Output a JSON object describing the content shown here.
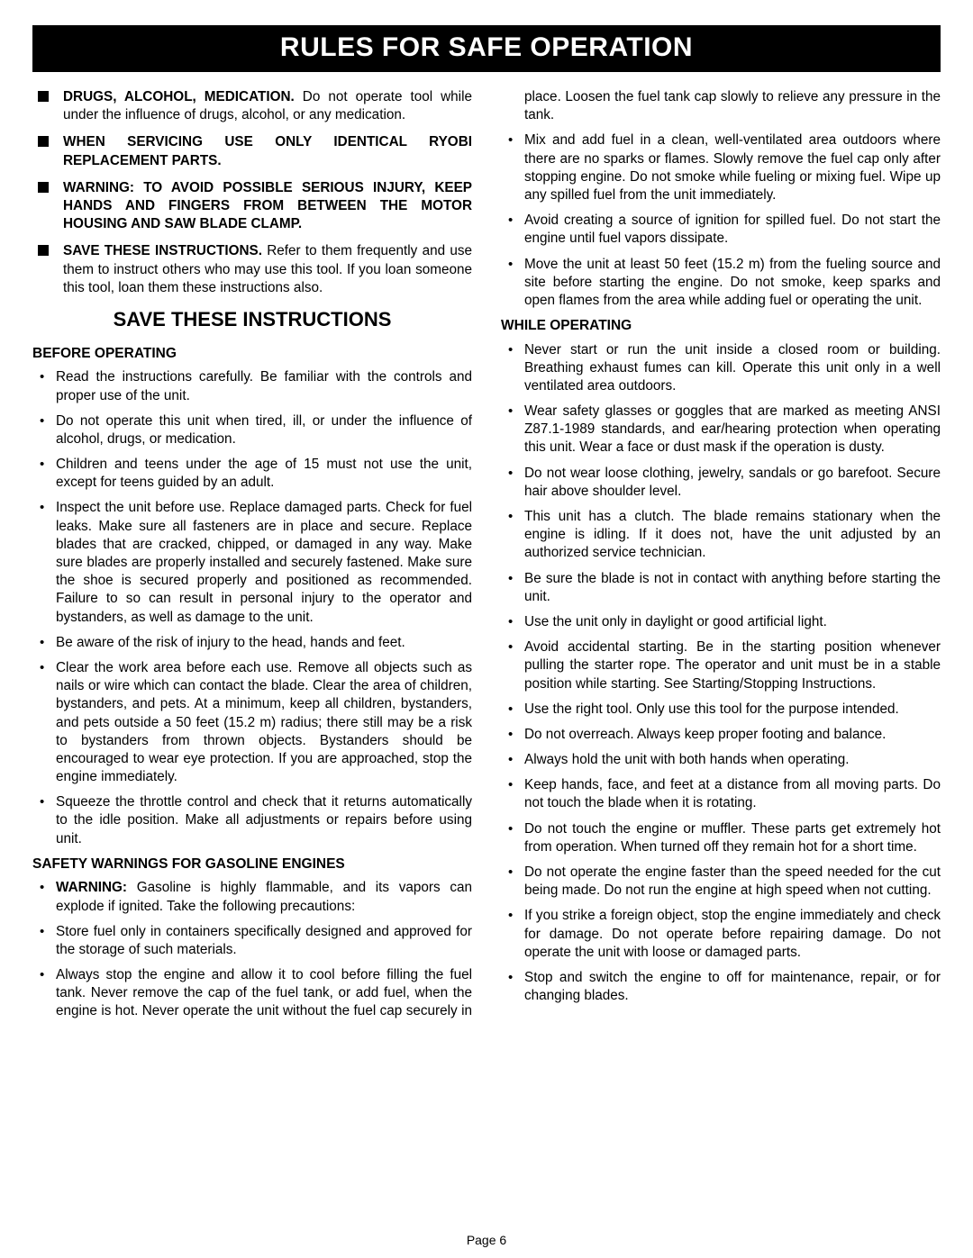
{
  "banner": "RULES FOR SAFE OPERATION",
  "squares": [
    {
      "bold": "DRUGS, ALCOHOL, MEDICATION.",
      "rest": " Do not operate tool while under the influence of drugs, alcohol, or any medication."
    },
    {
      "bold": "WHEN SERVICING USE ONLY IDENTICAL RYOBI REPLACEMENT PARTS.",
      "rest": ""
    },
    {
      "bold": "WARNING: TO AVOID POSSIBLE SERIOUS INJURY, KEEP HANDS AND FINGERS FROM BETWEEN THE MOTOR HOUSING AND SAW BLADE CLAMP.",
      "rest": ""
    },
    {
      "bold": "SAVE THESE INSTRUCTIONS.",
      "rest": " Refer to them frequently and use them to instruct others who may use this tool. If you loan someone this tool, loan them these instructions also."
    }
  ],
  "subhead": "SAVE THESE INSTRUCTIONS",
  "sec_before": "BEFORE OPERATING",
  "before_items": [
    {
      "text": "Read the instructions carefully. Be familiar with the controls and proper use of the unit."
    },
    {
      "text": "Do not operate this unit when tired, ill, or under the influence of alcohol, drugs, or medication."
    },
    {
      "text": "Children and teens under the age of 15 must not use the unit, except for teens guided by an adult."
    },
    {
      "text": "Inspect the unit before use. Replace damaged parts. Check for fuel leaks. Make sure all fasteners are in place and secure. Replace blades that are cracked, chipped, or damaged in any way. Make sure blades are properly installed and securely fastened. Make sure the shoe is secured properly and positioned as recommended. Failure to so can result in personal injury to the operator and bystanders, as well as damage to the unit."
    },
    {
      "text": "Be aware of the risk of injury to the head, hands and feet."
    },
    {
      "text": "Clear the work area before each use. Remove all objects such as nails or wire which can contact the blade. Clear the area of children, bystanders, and pets. At a minimum, keep all children, bystanders, and pets outside a 50 feet (15.2 m) radius; there still may be a risk to bystanders from thrown objects. Bystanders should be encouraged to wear eye protection. If you are approached, stop the engine immediately."
    },
    {
      "text": "Squeeze the throttle control and check that it returns automatically to the idle position. Make all adjustments or repairs before using unit."
    }
  ],
  "sec_gas": "SAFETY WARNINGS FOR GASOLINE ENGINES",
  "gas_items": [
    {
      "bold": "WARNING:",
      "rest": " Gasoline is highly flammable, and its vapors can explode if ignited. Take the following precautions:"
    },
    {
      "text": "Store fuel only in containers specifically designed and approved for the storage of such materials."
    },
    {
      "text": "Always stop the engine and allow it to cool before filling the fuel tank. Never remove the cap of the fuel tank, or add fuel, when the engine is hot. Never operate the unit without the fuel cap securely in place. Loosen the fuel tank cap slowly to relieve any pressure in the tank."
    },
    {
      "text": "Mix and add fuel in a clean, well-ventilated area outdoors where there are no sparks or flames. Slowly remove the fuel cap only after stopping engine. Do not smoke while fueling or mixing fuel. Wipe up any spilled fuel from the unit immediately."
    },
    {
      "text": "Avoid creating a source of ignition for spilled fuel. Do not start the engine until fuel vapors dissipate."
    },
    {
      "text": "Move the unit at least 50 feet (15.2 m) from the fueling source and site before starting the engine. Do not smoke, keep sparks and open flames from the area while adding fuel or operating the unit."
    }
  ],
  "sec_while": "WHILE OPERATING",
  "while_items": [
    {
      "text": "Never start or run the unit inside a closed room or building. Breathing exhaust fumes can kill. Operate this unit only in a well ventilated area outdoors."
    },
    {
      "text": "Wear safety glasses or goggles that are marked as meeting ANSI Z87.1-1989 standards, and ear/hearing protection when operating this unit. Wear a face or dust mask if the operation is dusty."
    },
    {
      "text": "Do not wear loose clothing, jewelry, sandals or go barefoot. Secure hair above shoulder level."
    },
    {
      "text": "This unit has a clutch. The blade remains stationary when the engine is idling. If it does not, have the unit adjusted by an authorized service technician."
    },
    {
      "text": "Be sure the blade is not in contact with anything before starting the unit."
    },
    {
      "text": "Use the unit only in daylight or good artificial light."
    },
    {
      "text": "Avoid accidental starting. Be in the starting position whenever pulling the starter rope. The operator and unit must be in a stable position while starting. See Starting/Stopping Instructions."
    },
    {
      "text": "Use the right tool. Only use this tool for the purpose intended."
    },
    {
      "text": "Do not overreach. Always keep proper footing and balance."
    },
    {
      "text": "Always hold the unit with both hands when operating."
    },
    {
      "text": "Keep hands, face, and feet at a distance from all moving parts. Do not touch the blade when it is rotating."
    },
    {
      "text": "Do not touch the engine or muffler. These parts get extremely hot from operation. When turned off they remain hot for a short time."
    },
    {
      "text": "Do not operate the engine faster than the speed needed for the cut being made. Do not run the engine at high speed when not cutting."
    },
    {
      "text": "If you strike a foreign object, stop the engine immediately and check for damage. Do not operate before repairing damage. Do not operate the unit with loose or damaged parts."
    },
    {
      "text": "Stop and switch the engine to off for maintenance, repair, or for changing blades."
    }
  ],
  "page_num": "Page 6"
}
